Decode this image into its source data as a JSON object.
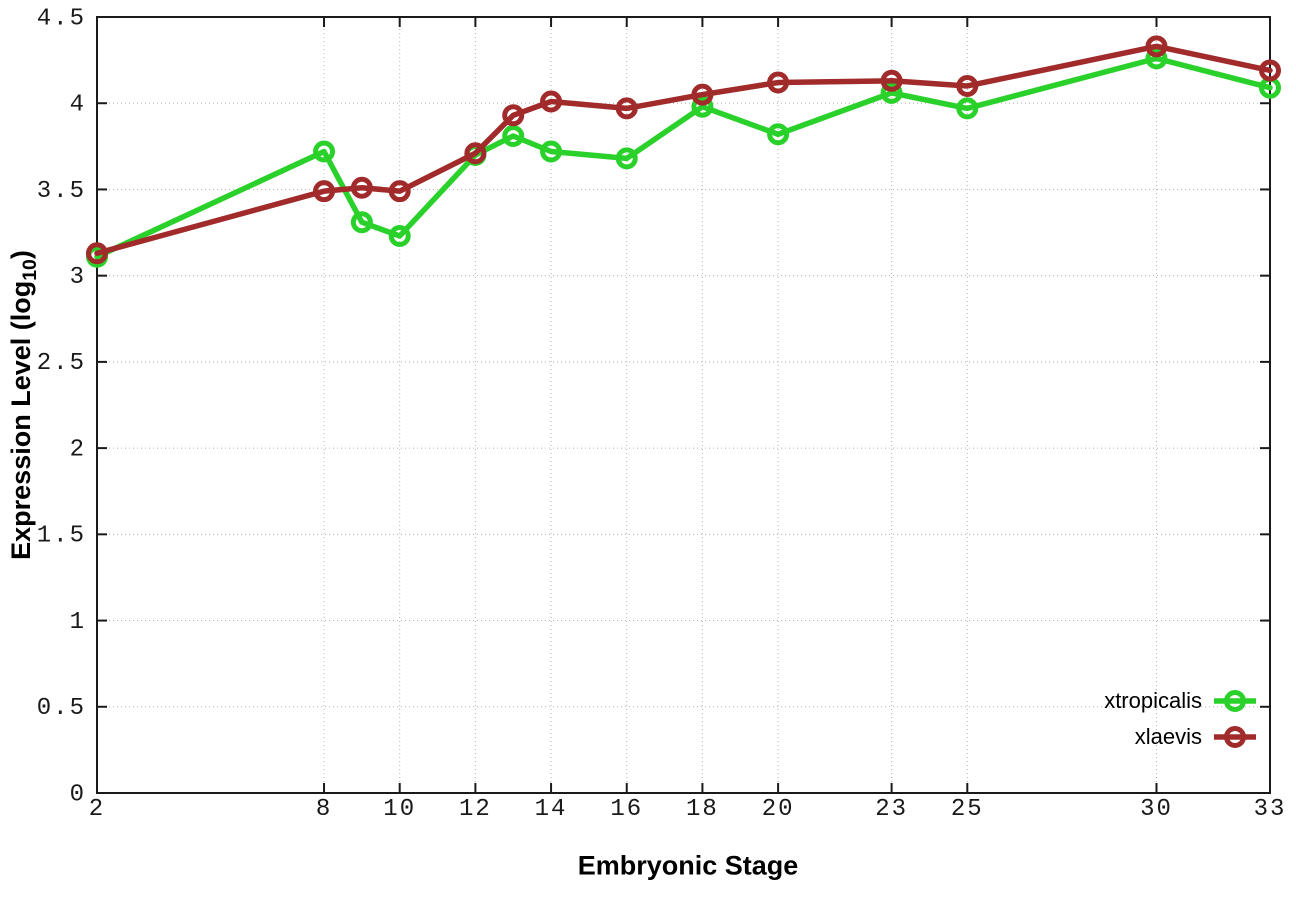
{
  "chart_data": {
    "type": "line",
    "title": "",
    "xlabel": "Embryonic Stage",
    "ylabel": "Expression Level (log10)",
    "xlim": [
      2,
      33
    ],
    "ylim": [
      0,
      4.5
    ],
    "x_ticks": [
      2,
      8,
      10,
      12,
      14,
      16,
      18,
      20,
      23,
      25,
      30,
      33
    ],
    "y_ticks": [
      0,
      0.5,
      1,
      1.5,
      2,
      2.5,
      3,
      3.5,
      4,
      4.5
    ],
    "grid": true,
    "legend_position": "bottom-right",
    "x": [
      2,
      8,
      9,
      10,
      12,
      13,
      14,
      16,
      18,
      20,
      23,
      25,
      30,
      33
    ],
    "series": [
      {
        "name": "xtropicalis",
        "color": "#2bd12b",
        "values": [
          3.11,
          3.72,
          3.31,
          3.23,
          3.7,
          3.81,
          3.72,
          3.68,
          3.98,
          3.82,
          4.06,
          3.97,
          4.26,
          4.09
        ]
      },
      {
        "name": "xlaevis",
        "color": "#a12b2b",
        "values": [
          3.13,
          3.49,
          3.51,
          3.49,
          3.71,
          3.93,
          4.01,
          3.97,
          4.05,
          4.12,
          4.13,
          4.1,
          4.33,
          4.19
        ]
      }
    ]
  },
  "axis": {
    "y_label_prefix": "Expression Level (log",
    "y_label_sub": "10",
    "y_label_suffix": ")"
  },
  "style": {
    "background": "#ffffff",
    "grid_color": "#b4b4b4",
    "border_color": "#1a1a1a",
    "tick_label_color": "#1a1a1a"
  }
}
